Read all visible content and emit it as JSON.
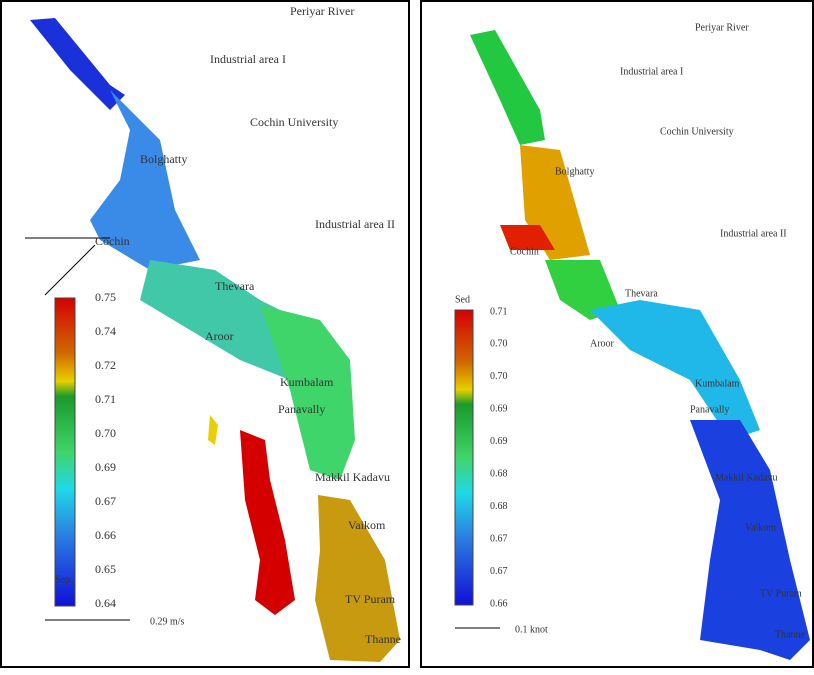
{
  "left": {
    "labels": [
      "Periyar River",
      "Industrial area I",
      "Cochin University",
      "Bolghatty",
      "Industrial area II",
      "Cochin",
      "Thevara",
      "Aroor",
      "Kumbalam",
      "Panavally",
      "Makkil Kadavu",
      "Vaikom",
      "TV Puram",
      "Thanne"
    ],
    "colorbar": {
      "ticks": [
        "0.75",
        "0.74",
        "0.72",
        "0.71",
        "0.70",
        "0.69",
        "0.67",
        "0.66",
        "0.65",
        "0.64"
      ],
      "unit": "Sep"
    },
    "scale": "0.29 m/s"
  },
  "right": {
    "labels": [
      "Periyar River",
      "Industrial area I",
      "Cochin University",
      "Bolghatty",
      "Industrial area II",
      "Cochin",
      "Thevara",
      "Aroor",
      "Kumbalam",
      "Panavally",
      "Makkil Kadavu",
      "Vaikom",
      "TV Puram",
      "Thanne"
    ],
    "colorbar": {
      "ticks": [
        "0.71",
        "0.70",
        "0.70",
        "0.69",
        "0.69",
        "0.68",
        "0.68",
        "0.67",
        "0.67",
        "0.66"
      ],
      "unit": "Sed"
    },
    "scale": "0.1 knot"
  }
}
